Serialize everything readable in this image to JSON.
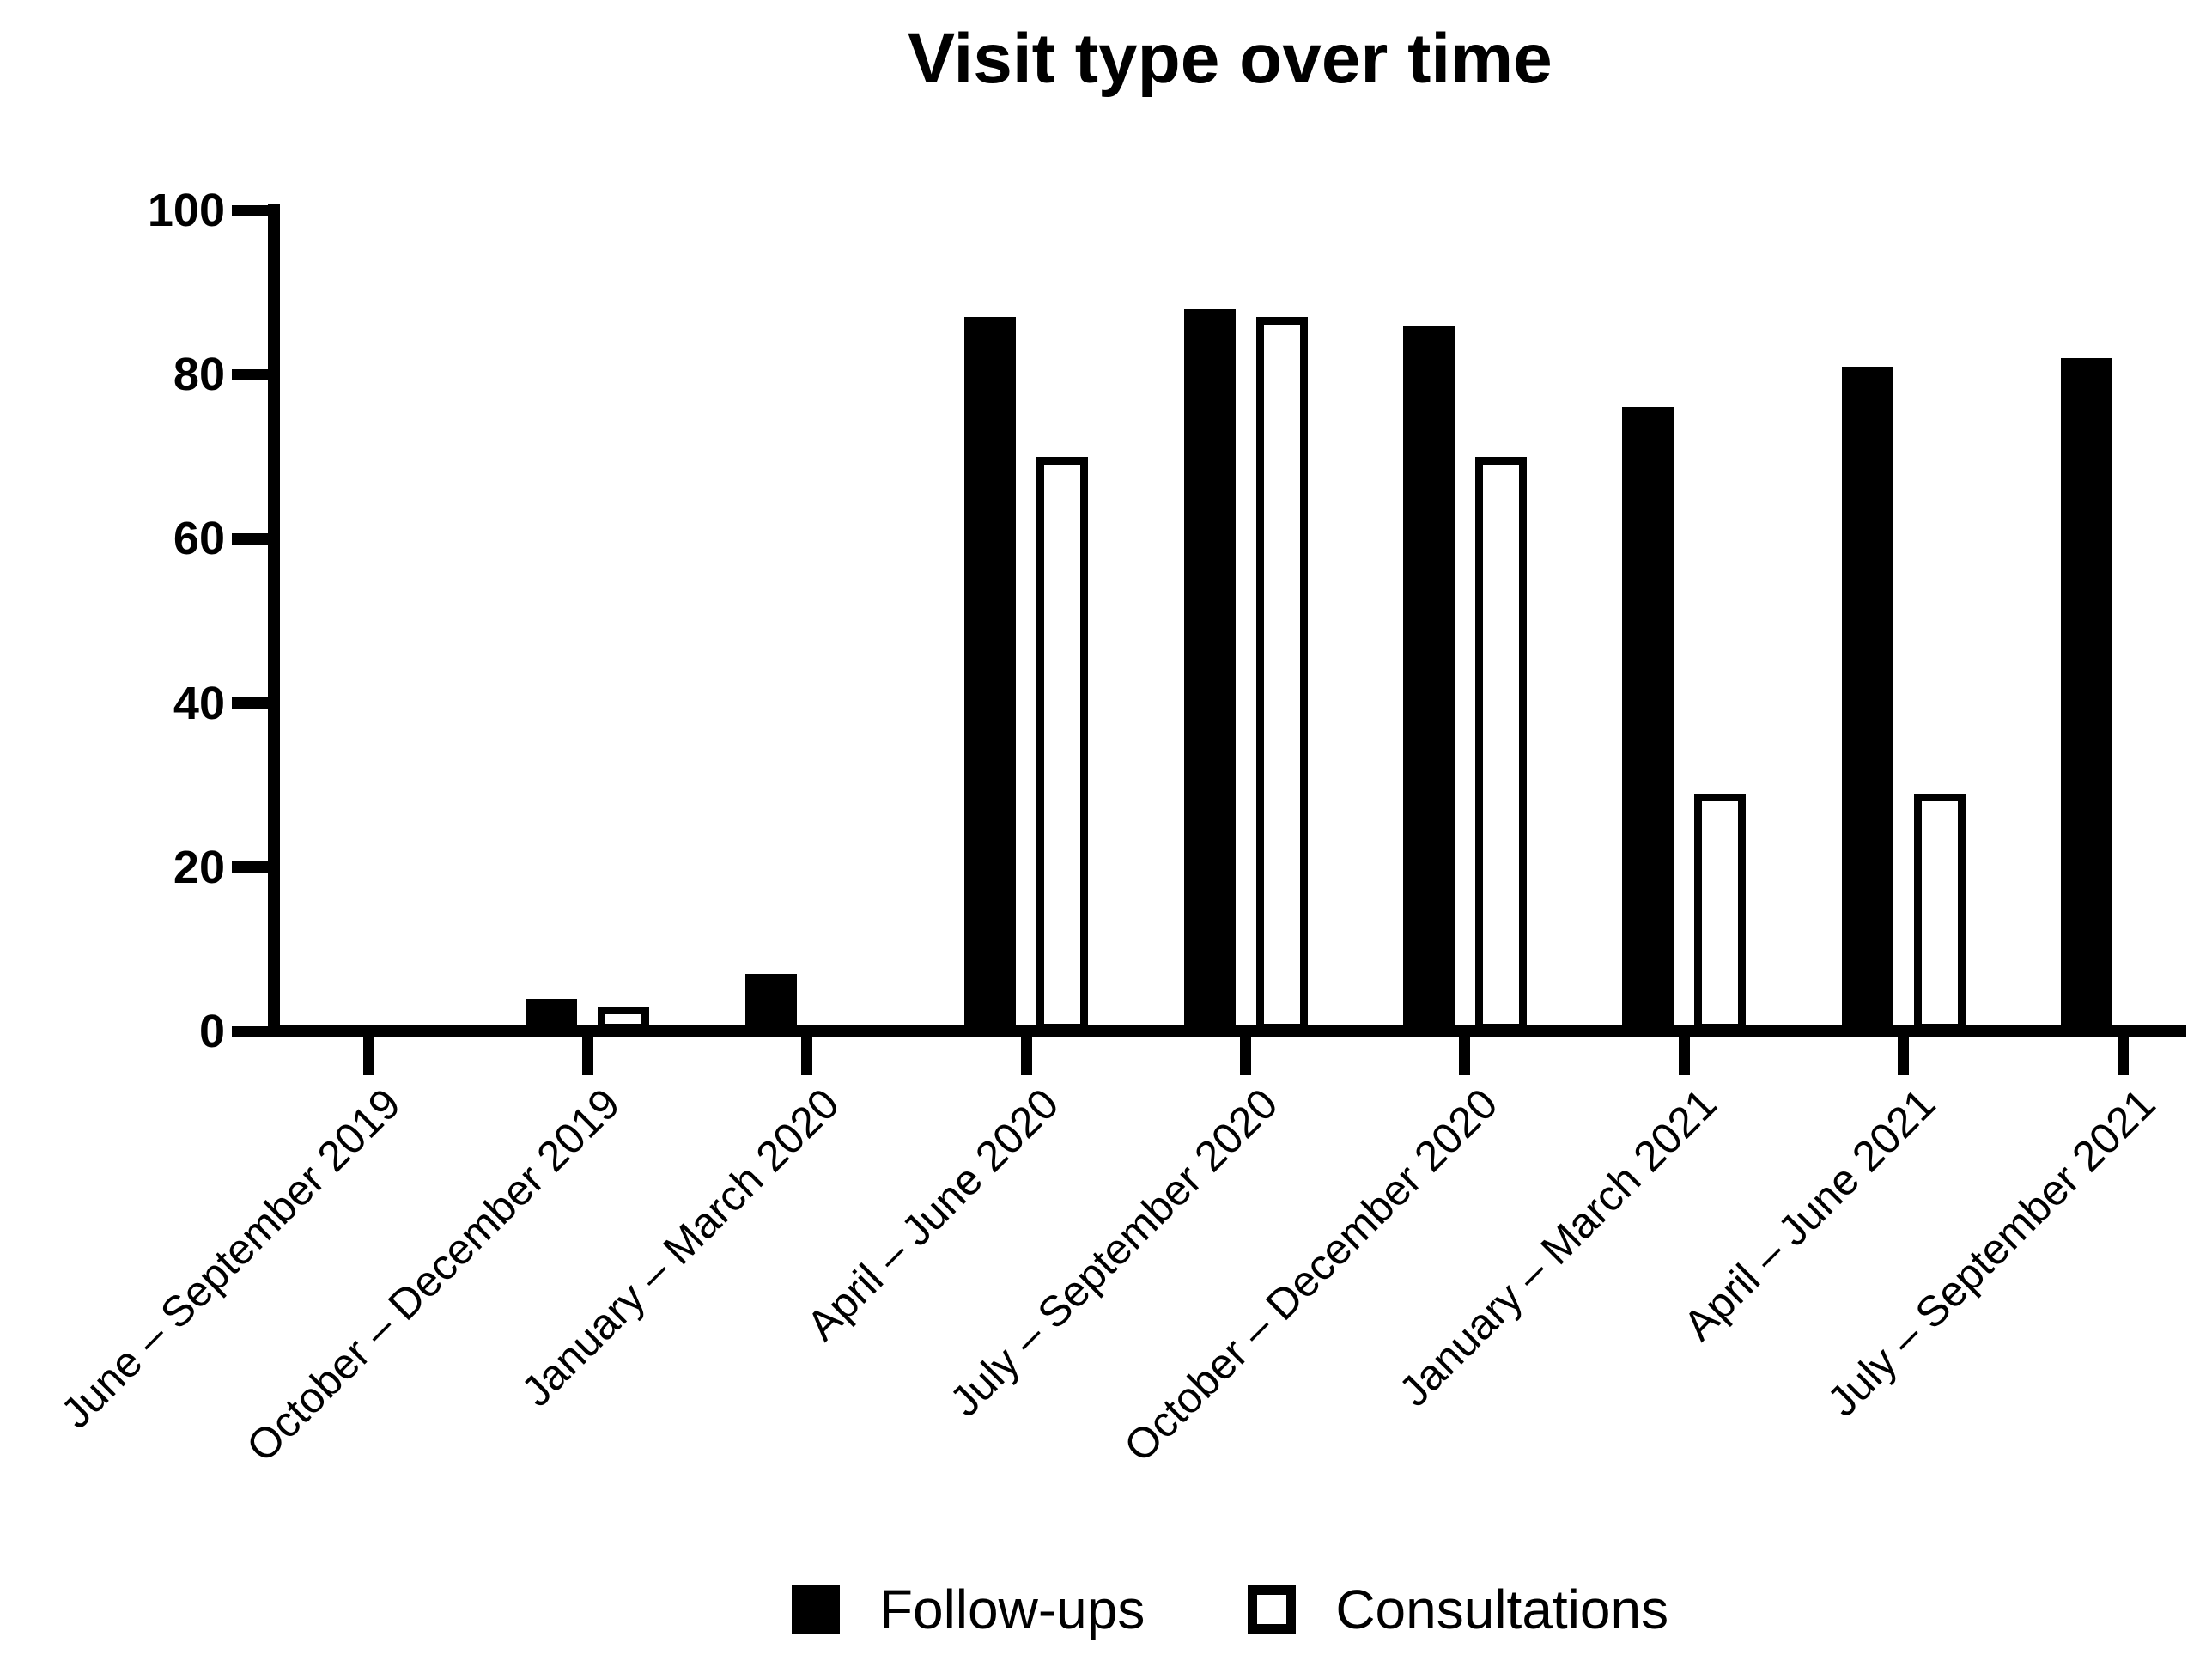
{
  "title": "Visit type over time",
  "colors": {
    "foreground": "#000000",
    "background": "#ffffff",
    "followups_fill": "#000000",
    "consultations_fill": "#ffffff",
    "consultations_border": "#000000"
  },
  "chart_data": {
    "type": "bar",
    "bar_style": "grouped",
    "title": "Visit type over time",
    "xlabel": "",
    "ylabel": "",
    "ylim": [
      0,
      100
    ],
    "yticks": [
      0,
      20,
      40,
      60,
      80,
      100
    ],
    "grid": false,
    "legend_position": "bottom",
    "categories": [
      "June – September 2019",
      "October – December 2019",
      "January – March 2020",
      "April – June 2020",
      "July – September 2020",
      "October – December 2020",
      "January – March 2021",
      "April – June 2021",
      "July – September 2021"
    ],
    "series": [
      {
        "name": "Follow-ups",
        "swatch": "filled-black",
        "values": [
          0,
          4,
          7,
          87,
          88,
          86,
          76,
          81,
          82
        ]
      },
      {
        "name": "Consultations",
        "swatch": "outlined-white",
        "values": [
          0,
          3,
          0,
          70,
          87,
          70,
          29,
          29,
          0
        ]
      }
    ]
  },
  "legend": {
    "items": [
      {
        "label": "Follow-ups"
      },
      {
        "label": "Consultations"
      }
    ]
  }
}
